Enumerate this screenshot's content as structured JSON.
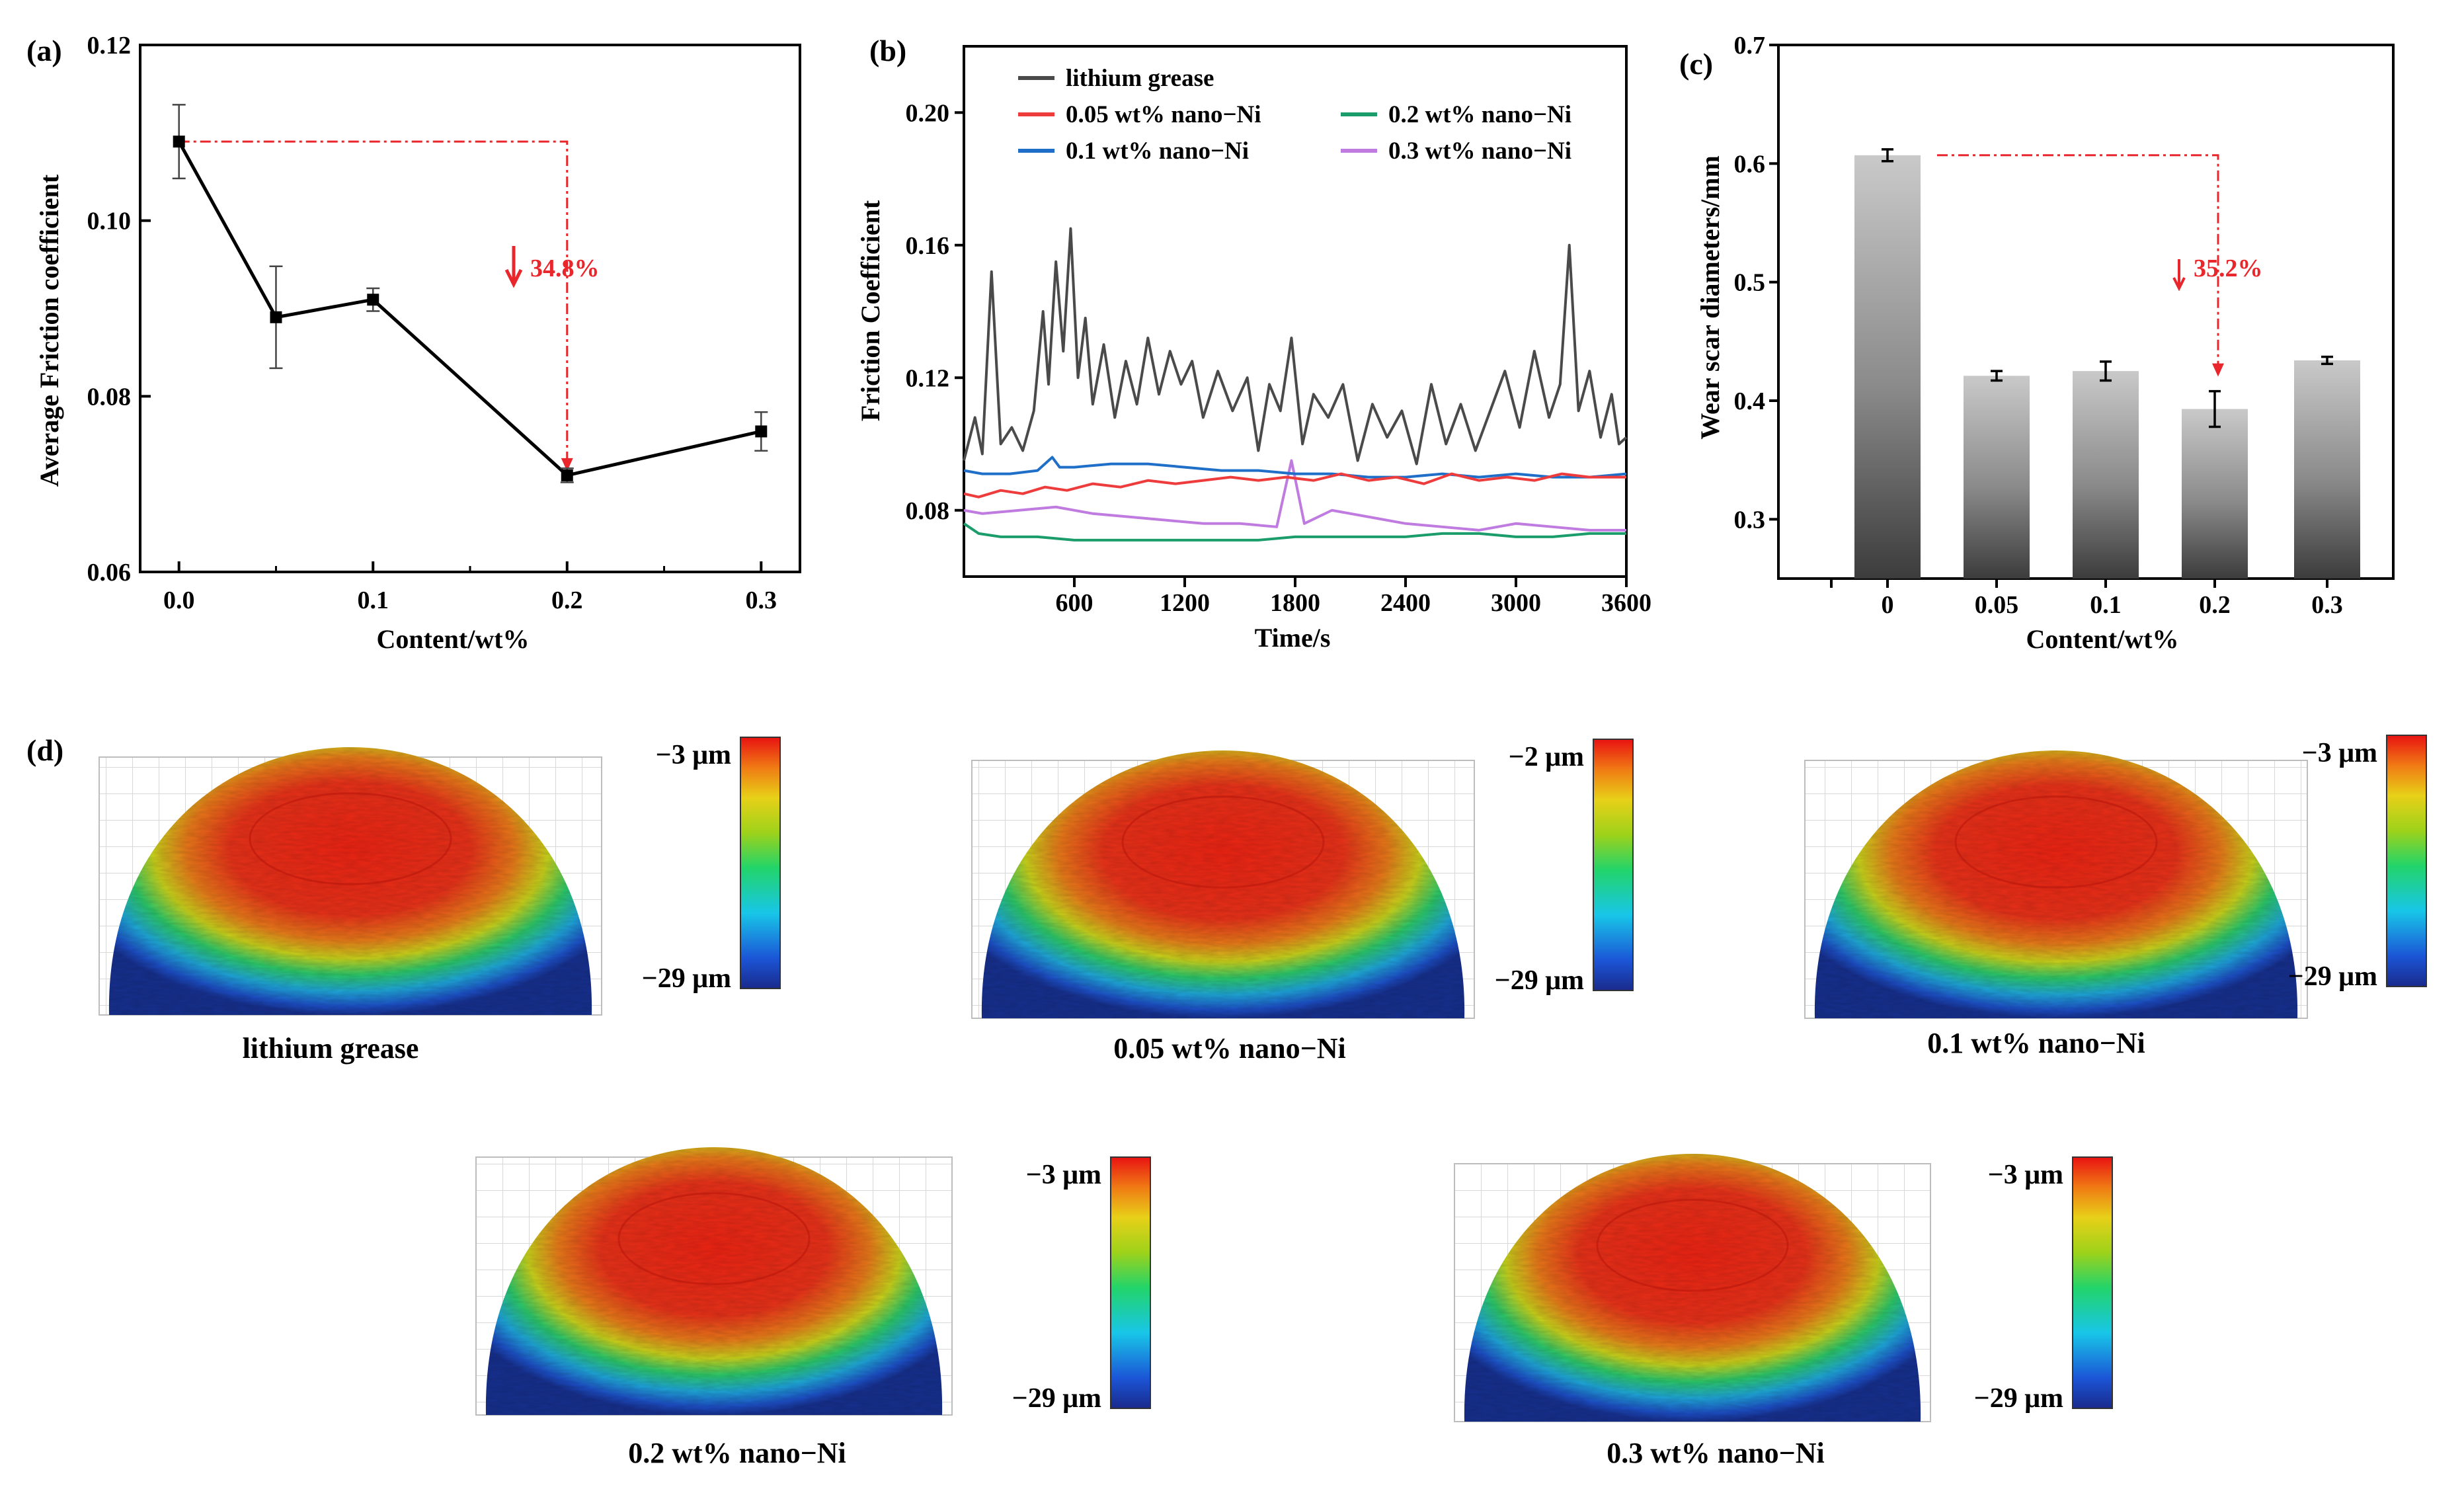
{
  "panels": {
    "a": "(a)",
    "b": "(b)",
    "c": "(c)",
    "d": "(d)"
  },
  "colors": {
    "lithium": "#4a4a4a",
    "ni005": "#ee3b3b",
    "ni01": "#1f6fc8",
    "ni02": "#1a9d6b",
    "ni03": "#c07be0",
    "annotation": "#e8262b"
  },
  "chart_data": [
    {
      "type": "line",
      "panel": "(a)",
      "xlabel": "Content/wt%",
      "ylabel": "Average Friction coefficient",
      "xlim": [
        -0.02,
        0.32
      ],
      "ylim": [
        0.06,
        0.12
      ],
      "xticks": [
        "0.0",
        "0.1",
        "0.2",
        "0.3"
      ],
      "xtick_values": [
        0.0,
        0.1,
        0.2,
        0.3
      ],
      "yticks": [
        "0.06",
        "0.08",
        "0.10",
        "0.12"
      ],
      "ytick_values": [
        0.06,
        0.08,
        0.1,
        0.12
      ],
      "x": [
        0.0,
        0.05,
        0.1,
        0.2,
        0.3
      ],
      "y": [
        0.109,
        0.089,
        0.091,
        0.071,
        0.076
      ],
      "yerr": [
        0.0042,
        0.0058,
        0.0013,
        0.0008,
        0.0022
      ],
      "annotation": "34.8%"
    },
    {
      "type": "line",
      "panel": "(b)",
      "xlabel": "Time/s",
      "ylabel": "Friction Coefficient",
      "xlim": [
        0,
        3600
      ],
      "ylim": [
        0.06,
        0.22
      ],
      "xticks": [
        "600",
        "1200",
        "1800",
        "2400",
        "3000",
        "3600"
      ],
      "xtick_values": [
        600,
        1200,
        1800,
        2400,
        3000,
        3600
      ],
      "yticks": [
        "0.08",
        "0.12",
        "0.16",
        "0.20"
      ],
      "ytick_values": [
        0.08,
        0.12,
        0.16,
        0.2
      ],
      "series": [
        {
          "name": "lithium grease",
          "color_key": "lithium",
          "x": [
            0,
            60,
            100,
            150,
            200,
            260,
            320,
            380,
            430,
            460,
            500,
            540,
            580,
            620,
            660,
            700,
            760,
            820,
            880,
            940,
            1000,
            1060,
            1120,
            1180,
            1240,
            1300,
            1380,
            1460,
            1540,
            1600,
            1660,
            1720,
            1780,
            1840,
            1900,
            1980,
            2060,
            2140,
            2220,
            2300,
            2380,
            2460,
            2540,
            2620,
            2700,
            2780,
            2860,
            2940,
            3020,
            3100,
            3180,
            3240,
            3290,
            3340,
            3400,
            3460,
            3520,
            3560,
            3600
          ],
          "y": [
            0.095,
            0.108,
            0.097,
            0.152,
            0.1,
            0.105,
            0.098,
            0.11,
            0.14,
            0.118,
            0.155,
            0.128,
            0.165,
            0.12,
            0.138,
            0.112,
            0.13,
            0.108,
            0.125,
            0.112,
            0.132,
            0.115,
            0.128,
            0.118,
            0.125,
            0.108,
            0.122,
            0.11,
            0.12,
            0.098,
            0.118,
            0.11,
            0.132,
            0.1,
            0.115,
            0.108,
            0.118,
            0.095,
            0.112,
            0.102,
            0.11,
            0.094,
            0.118,
            0.1,
            0.112,
            0.098,
            0.11,
            0.122,
            0.105,
            0.128,
            0.108,
            0.118,
            0.16,
            0.11,
            0.122,
            0.102,
            0.115,
            0.1,
            0.102
          ]
        },
        {
          "name": "0.05 wt% nano−Ni",
          "color_key": "ni005",
          "x": [
            0,
            80,
            200,
            320,
            440,
            560,
            700,
            850,
            1000,
            1150,
            1300,
            1450,
            1600,
            1750,
            1900,
            2050,
            2200,
            2350,
            2500,
            2650,
            2800,
            2950,
            3100,
            3250,
            3400,
            3600
          ],
          "y": [
            0.085,
            0.084,
            0.086,
            0.085,
            0.087,
            0.086,
            0.088,
            0.087,
            0.089,
            0.088,
            0.089,
            0.09,
            0.089,
            0.09,
            0.089,
            0.091,
            0.089,
            0.09,
            0.088,
            0.091,
            0.089,
            0.09,
            0.089,
            0.091,
            0.09,
            0.09
          ]
        },
        {
          "name": "0.1 wt% nano−Ni",
          "color_key": "ni01",
          "x": [
            0,
            100,
            250,
            400,
            480,
            520,
            600,
            800,
            1000,
            1200,
            1400,
            1600,
            1800,
            2000,
            2200,
            2400,
            2600,
            2800,
            3000,
            3200,
            3400,
            3600
          ],
          "y": [
            0.092,
            0.091,
            0.091,
            0.092,
            0.096,
            0.093,
            0.093,
            0.094,
            0.094,
            0.093,
            0.092,
            0.092,
            0.091,
            0.091,
            0.09,
            0.09,
            0.091,
            0.09,
            0.091,
            0.09,
            0.09,
            0.091
          ]
        },
        {
          "name": "0.2 wt% nano−Ni",
          "color_key": "ni02",
          "x": [
            0,
            80,
            200,
            400,
            600,
            800,
            1000,
            1200,
            1400,
            1600,
            1800,
            2000,
            2200,
            2400,
            2600,
            2800,
            3000,
            3200,
            3400,
            3600
          ],
          "y": [
            0.076,
            0.073,
            0.072,
            0.072,
            0.071,
            0.071,
            0.071,
            0.071,
            0.071,
            0.071,
            0.072,
            0.072,
            0.072,
            0.072,
            0.073,
            0.073,
            0.072,
            0.072,
            0.073,
            0.073
          ]
        },
        {
          "name": "0.3 wt% nano−Ni",
          "color_key": "ni03",
          "x": [
            0,
            100,
            300,
            500,
            700,
            900,
            1100,
            1300,
            1500,
            1700,
            1780,
            1850,
            2000,
            2200,
            2400,
            2600,
            2800,
            3000,
            3200,
            3400,
            3600
          ],
          "y": [
            0.08,
            0.079,
            0.08,
            0.081,
            0.079,
            0.078,
            0.077,
            0.076,
            0.076,
            0.075,
            0.095,
            0.076,
            0.08,
            0.078,
            0.076,
            0.075,
            0.074,
            0.076,
            0.075,
            0.074,
            0.074
          ]
        }
      ]
    },
    {
      "type": "bar",
      "panel": "(c)",
      "xlabel": "Content/wt%",
      "ylabel": "Wear scar diameters/mm",
      "categories": [
        "0",
        "0.05",
        "0.1",
        "0.2",
        "0.3"
      ],
      "values": [
        0.607,
        0.421,
        0.425,
        0.393,
        0.434
      ],
      "yerr": [
        0.005,
        0.004,
        0.008,
        0.015,
        0.003
      ],
      "ylim": [
        0.25,
        0.7
      ],
      "yticks": [
        "0.3",
        "0.4",
        "0.5",
        "0.6",
        "0.7"
      ],
      "ytick_values": [
        0.3,
        0.4,
        0.5,
        0.6,
        0.7
      ],
      "annotation": "35.2%"
    }
  ],
  "surfaces": [
    {
      "caption": "lithium grease",
      "top": "−3 μm",
      "bottom": "−29 μm"
    },
    {
      "caption": "0.05 wt% nano−Ni",
      "top": "−2 μm",
      "bottom": "−29 μm"
    },
    {
      "caption": "0.1 wt% nano−Ni",
      "top": "−3 μm",
      "bottom": "−29 μm"
    },
    {
      "caption": "0.2 wt% nano−Ni",
      "top": "−3 μm",
      "bottom": "−29 μm"
    },
    {
      "caption": "0.3 wt% nano−Ni",
      "top": "−3 μm",
      "bottom": "−29 μm"
    }
  ]
}
